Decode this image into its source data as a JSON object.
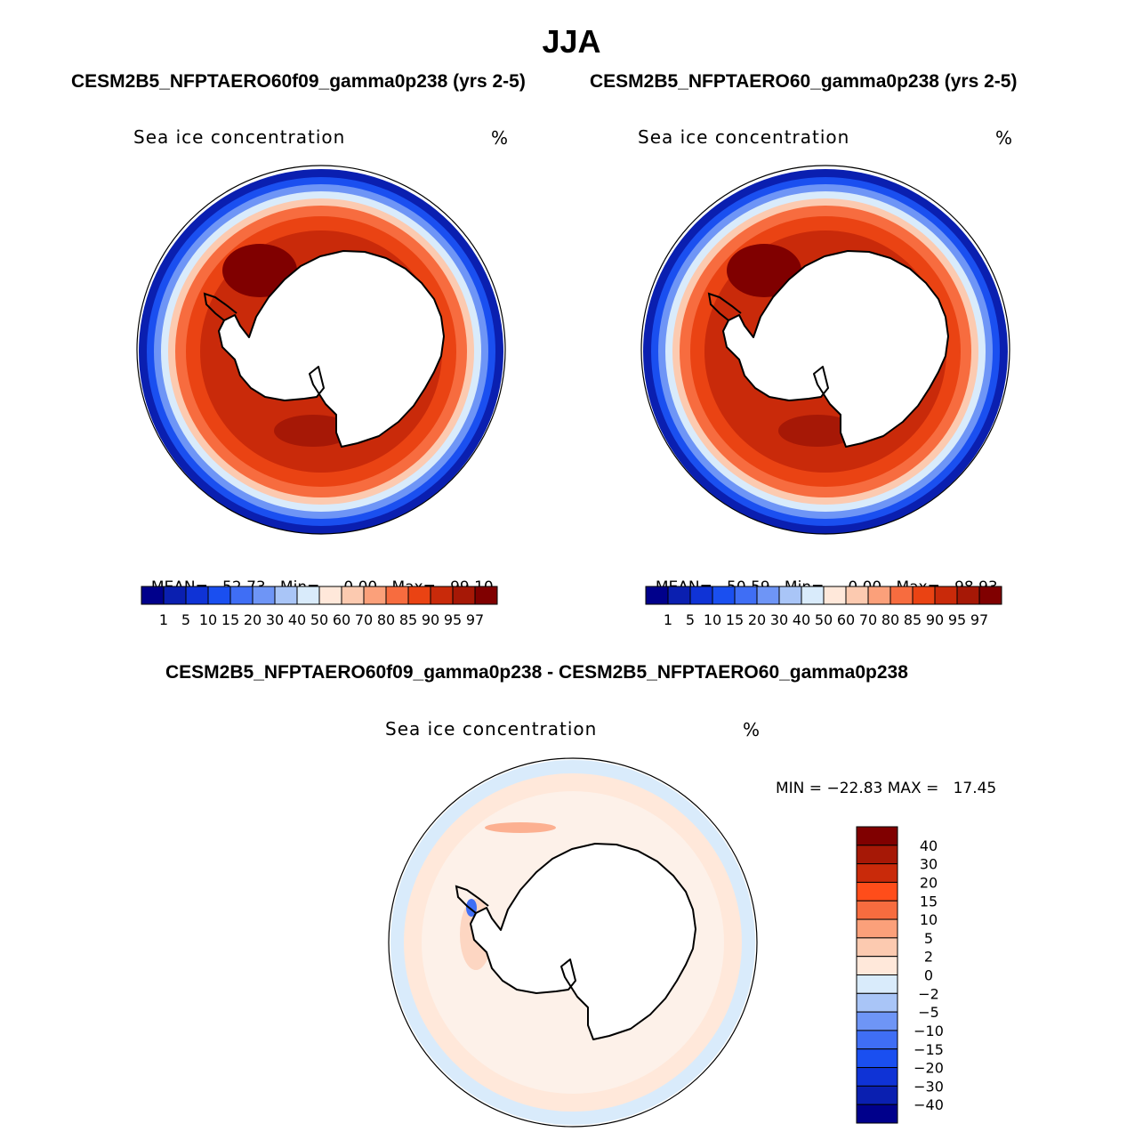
{
  "page_title": "JJA",
  "panels": [
    {
      "case_title": "CESM2B5_NFPTAERO60f09_gamma0p238 (yrs 2-5)",
      "variable_label": "Sea ice concentration",
      "units": "%",
      "stats": {
        "mean_label": "MEAN=",
        "mean": "52.73",
        "min_label": "Min=",
        "min": "0.00",
        "max_label": "Max=",
        "max": "99.10"
      }
    },
    {
      "case_title": "CESM2B5_NFPTAERO60_gamma0p238 (yrs 2-5)",
      "variable_label": "Sea ice concentration",
      "units": "%",
      "stats": {
        "mean_label": "MEAN=",
        "mean": "50.59",
        "min_label": "Min=",
        "min": "0.00",
        "max_label": "Max=",
        "max": "98.93"
      }
    }
  ],
  "diff_panel": {
    "case_title": "CESM2B5_NFPTAERO60f09_gamma0p238 - CESM2B5_NFPTAERO60_gamma0p238",
    "variable_label": "Sea ice concentration",
    "units": "%",
    "minmax_text": "MIN = −22.83 MAX =   17.45"
  },
  "chart_data": [
    {
      "type": "heatmap",
      "projection": "south polar stereographic",
      "title": "CESM2B5_NFPTAERO60f09_gamma0p238 (yrs 2-5)",
      "variable": "Sea ice concentration",
      "units": "%",
      "mean": 52.73,
      "min": 0.0,
      "max": 99.1,
      "levels": [
        1,
        5,
        10,
        15,
        20,
        30,
        40,
        50,
        60,
        70,
        80,
        85,
        90,
        95,
        97
      ],
      "colors": [
        "#00008b",
        "#0a1fb0",
        "#0f33d6",
        "#1a4ff0",
        "#3f6ef5",
        "#6e95f6",
        "#a9c5f7",
        "#d9ebfb",
        "#ffe8da",
        "#fccab0",
        "#fba07a",
        "#f76c3f",
        "#ea4313",
        "#c92a0a",
        "#a61806",
        "#800000"
      ]
    },
    {
      "type": "heatmap",
      "projection": "south polar stereographic",
      "title": "CESM2B5_NFPTAERO60_gamma0p238 (yrs 2-5)",
      "variable": "Sea ice concentration",
      "units": "%",
      "mean": 50.59,
      "min": 0.0,
      "max": 98.93,
      "levels": [
        1,
        5,
        10,
        15,
        20,
        30,
        40,
        50,
        60,
        70,
        80,
        85,
        90,
        95,
        97
      ],
      "colors": [
        "#00008b",
        "#0a1fb0",
        "#0f33d6",
        "#1a4ff0",
        "#3f6ef5",
        "#6e95f6",
        "#a9c5f7",
        "#d9ebfb",
        "#ffe8da",
        "#fccab0",
        "#fba07a",
        "#f76c3f",
        "#ea4313",
        "#c92a0a",
        "#a61806",
        "#800000"
      ]
    },
    {
      "type": "heatmap",
      "projection": "south polar stereographic",
      "title": "CESM2B5_NFPTAERO60f09_gamma0p238 - CESM2B5_NFPTAERO60_gamma0p238",
      "variable": "Sea ice concentration",
      "units": "%",
      "min": -22.83,
      "max": 17.45,
      "levels": [
        -40,
        -30,
        -20,
        -15,
        -10,
        -5,
        -2,
        0,
        2,
        5,
        10,
        15,
        20,
        30,
        40
      ],
      "colors": [
        "#00008b",
        "#0a1fb0",
        "#0f33d6",
        "#1a4ff0",
        "#3f6ef5",
        "#6e95f6",
        "#a9c5f7",
        "#d9ebfb",
        "#ffe8da",
        "#fccab0",
        "#fba07a",
        "#f76c3f",
        "#ff4d1a",
        "#c92a0a",
        "#a61806",
        "#800000"
      ]
    }
  ]
}
